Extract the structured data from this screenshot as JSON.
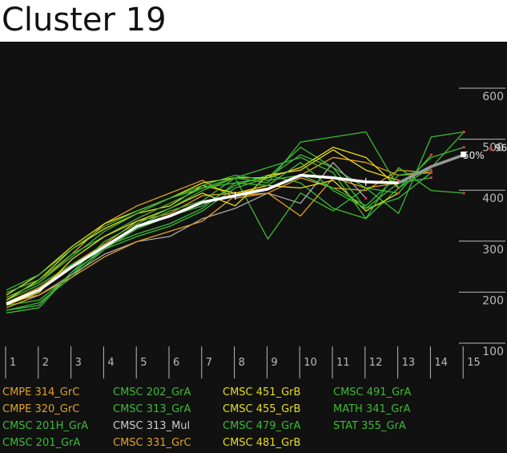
{
  "title": "Cluster 19",
  "chart_data": {
    "type": "line",
    "ylim": [
      100,
      600
    ],
    "y_ticks": [
      "100",
      "200",
      "300",
      "400",
      "500",
      "600"
    ],
    "x": [
      1,
      2,
      3,
      4,
      5,
      6,
      7,
      8,
      9,
      10,
      11,
      12,
      13,
      14,
      15
    ],
    "x_ticks": [
      "1",
      "2",
      "3",
      "4",
      "5",
      "6",
      "7",
      "8",
      "9",
      "10",
      "11",
      "12",
      "13",
      "14",
      "15"
    ],
    "grid": false,
    "legend_position": "bottom",
    "end_labels": [
      "96",
      "50%"
    ],
    "colors": {
      "background": "#111111",
      "mean": "#ffffff",
      "green": "#3dbb35",
      "orange": "#e0a21e",
      "yellow": "#e8dc1c",
      "gray": "#aaaaaa"
    },
    "series": [
      {
        "name": "CMPE 314_GrC",
        "color": "#e0a21e",
        "values": [
          205,
          235,
          290,
          350,
          385,
          410,
          435,
          400,
          410,
          440,
          420,
          415,
          455,
          450,
          null
        ]
      },
      {
        "name": "CMPE 320_GrC",
        "color": "#e0a21e",
        "values": [
          195,
          225,
          270,
          310,
          355,
          370,
          405,
          410,
          420,
          445,
          480,
          470,
          445,
          450,
          null
        ]
      },
      {
        "name": "CMSC 201H_GrA",
        "color": "#3dbb35",
        "values": [
          200,
          230,
          270,
          305,
          330,
          350,
          380,
          430,
          440,
          485,
          460,
          380,
          400,
          450,
          null
        ]
      },
      {
        "name": "CMSC 201_GrA",
        "color": "#3dbb35",
        "values": [
          175,
          185,
          255,
          300,
          325,
          345,
          375,
          420,
          440,
          500,
          460,
          420,
          410,
          485,
          null
        ]
      },
      {
        "name": "CMSC 202_GrA",
        "color": "#3dbb35",
        "values": [
          180,
          195,
          245,
          300,
          340,
          365,
          385,
          425,
          445,
          430,
          380,
          360,
          420,
          460,
          530
        ]
      },
      {
        "name": "CMSC 313_GrA",
        "color": "#3dbb35",
        "values": [
          190,
          200,
          250,
          305,
          345,
          375,
          395,
          440,
          320,
          410,
          375,
          420,
          370,
          520,
          530
        ]
      },
      {
        "name": "CMSC 313_Mul",
        "color": "#aaaaaa",
        "values": [
          195,
          210,
          250,
          290,
          315,
          325,
          360,
          380,
          410,
          390,
          470,
          400,
          null,
          null,
          null
        ]
      },
      {
        "name": "CMSC 331_GrC",
        "color": "#e0a21e",
        "values": [
          185,
          210,
          245,
          285,
          315,
          335,
          355,
          405,
          410,
          365,
          440,
          420,
          430,
          null,
          null
        ]
      },
      {
        "name": "CMSC 451_GrB",
        "color": "#e8dc1c",
        "values": [
          210,
          250,
          305,
          350,
          375,
          400,
          430,
          440,
          440,
          460,
          500,
          480,
          420,
          null,
          null
        ]
      },
      {
        "name": "CMSC 455_GrB",
        "color": "#e8dc1c",
        "values": [
          200,
          240,
          300,
          340,
          370,
          385,
          425,
          410,
          425,
          420,
          435,
          375,
          410,
          null,
          null
        ]
      },
      {
        "name": "CMSC 479_GrA",
        "color": "#3dbb35",
        "values": [
          215,
          240,
          290,
          325,
          360,
          390,
          420,
          440,
          430,
          510,
          520,
          530,
          420,
          480,
          500
        ]
      },
      {
        "name": "CMSC 481_GrB",
        "color": "#e8dc1c",
        "values": [
          190,
          215,
          280,
          325,
          355,
          380,
          410,
          385,
          445,
          455,
          495,
          455,
          435,
          null,
          null
        ]
      },
      {
        "name": "CMSC 491_GrA",
        "color": "#3dbb35",
        "values": [
          180,
          190,
          255,
          315,
          350,
          380,
          415,
          440,
          460,
          480,
          450,
          360,
          460,
          415,
          410
        ]
      },
      {
        "name": "MATH 341_GrA",
        "color": "#3dbb35",
        "values": [
          205,
          235,
          285,
          335,
          370,
          400,
          425,
          445,
          435,
          445,
          420,
          385,
          445,
          455,
          null
        ]
      },
      {
        "name": "STAT 355_GrA",
        "color": "#3dbb35",
        "values": [
          220,
          250,
          300,
          345,
          375,
          400,
          420,
          430,
          425,
          470,
          415,
          380,
          430,
          440,
          null
        ]
      }
    ],
    "mean_line": [
      193,
      220,
      265,
      305,
      345,
      365,
      392,
      405,
      418,
      445,
      440,
      432,
      430,
      462,
      485
    ]
  },
  "legend": {
    "items": [
      {
        "label": "CMPE 314_GrC",
        "color": "#e0a21e",
        "col": 0,
        "row": 0
      },
      {
        "label": "CMPE 320_GrC",
        "color": "#e0a21e",
        "col": 0,
        "row": 1
      },
      {
        "label": "CMSC 201H_GrA",
        "color": "#3dbb35",
        "col": 0,
        "row": 2
      },
      {
        "label": "CMSC 201_GrA",
        "color": "#3dbb35",
        "col": 0,
        "row": 3
      },
      {
        "label": "CMSC 202_GrA",
        "color": "#3dbb35",
        "col": 1,
        "row": 0
      },
      {
        "label": "CMSC 313_GrA",
        "color": "#3dbb35",
        "col": 1,
        "row": 1
      },
      {
        "label": "CMSC 313_Mul",
        "color": "#cccccc",
        "col": 1,
        "row": 2
      },
      {
        "label": "CMSC 331_GrC",
        "color": "#e0a21e",
        "col": 1,
        "row": 3
      },
      {
        "label": "CMSC 451_GrB",
        "color": "#e8dc1c",
        "col": 2,
        "row": 0
      },
      {
        "label": "CMSC 455_GrB",
        "color": "#e8dc1c",
        "col": 2,
        "row": 1
      },
      {
        "label": "CMSC 479_GrA",
        "color": "#3dbb35",
        "col": 2,
        "row": 2
      },
      {
        "label": "CMSC 481_GrB",
        "color": "#e8dc1c",
        "col": 2,
        "row": 3
      },
      {
        "label": "CMSC 491_GrA",
        "color": "#3dbb35",
        "col": 3,
        "row": 0
      },
      {
        "label": "MATH 341_GrA",
        "color": "#3dbb35",
        "col": 3,
        "row": 1
      },
      {
        "label": "STAT 355_GrA",
        "color": "#3dbb35",
        "col": 3,
        "row": 2
      }
    ]
  }
}
